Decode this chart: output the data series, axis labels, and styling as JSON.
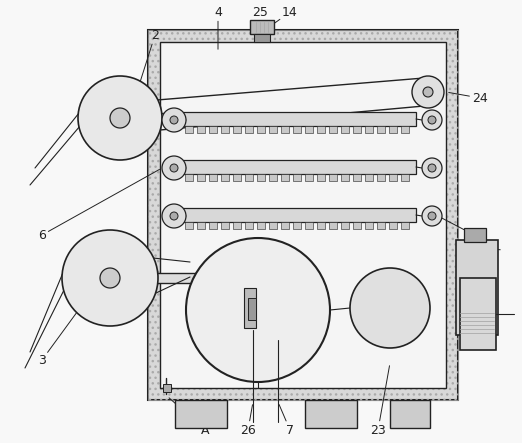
{
  "bg_color": "#f8f8f8",
  "dark": "#222222",
  "gray": "#aaaaaa",
  "lgray": "#cccccc",
  "dgray": "#888888",
  "hatch_gray": "#c8c8c8",
  "label_fontsize": 9,
  "annotation_lw": 0.7
}
